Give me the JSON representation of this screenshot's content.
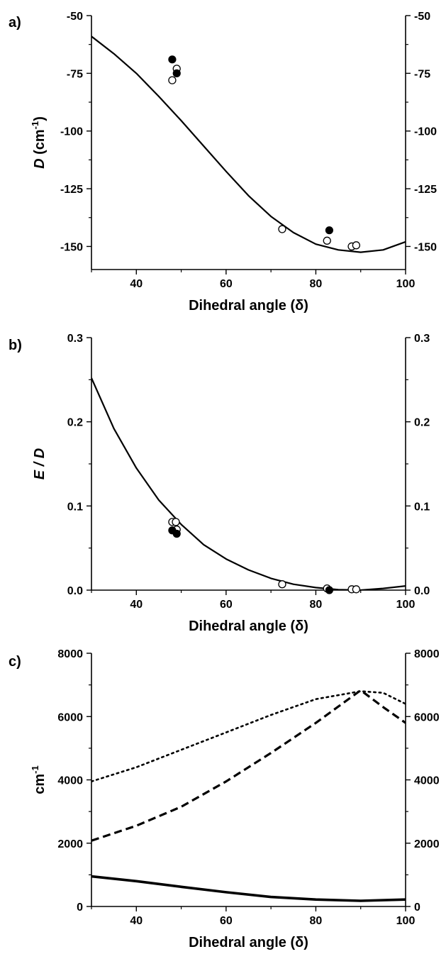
{
  "chart_data": [
    {
      "type": "line",
      "panel_label": "a)",
      "xlabel": "Dihedral angle (δ)",
      "ylabel": {
        "main": "D",
        "unit_prefix": " (cm",
        "unit_exp": "-1",
        "unit_suffix": ")"
      },
      "xlim": [
        30,
        100
      ],
      "ylim": [
        -160,
        -50
      ],
      "xticks": [
        40,
        60,
        80,
        100
      ],
      "yticks": [
        -150,
        -125,
        -100,
        -75,
        -50
      ],
      "grid": false,
      "series": [
        {
          "style": "solid",
          "x": [
            30,
            35,
            40,
            45,
            50,
            55,
            60,
            65,
            70,
            75,
            80,
            85,
            90,
            95,
            100
          ],
          "y": [
            -59,
            -66.5,
            -75,
            -85,
            -95.5,
            -106.5,
            -117.5,
            -128,
            -137,
            -144,
            -149,
            -151.5,
            -152.5,
            -151.5,
            -148
          ]
        }
      ],
      "markers": {
        "filled": [
          {
            "x": 48,
            "y": -69
          },
          {
            "x": 49,
            "y": -75
          },
          {
            "x": 83,
            "y": -143
          }
        ],
        "open": [
          {
            "x": 48,
            "y": -78
          },
          {
            "x": 49,
            "y": -73
          },
          {
            "x": 72.5,
            "y": -142.5
          },
          {
            "x": 82.5,
            "y": -147.5
          },
          {
            "x": 88,
            "y": -150
          },
          {
            "x": 89,
            "y": -149.5
          }
        ]
      }
    },
    {
      "type": "line",
      "panel_label": "b)",
      "xlabel": "Dihedral angle (δ)",
      "ylabel": {
        "main": "E / D"
      },
      "xlim": [
        30,
        100
      ],
      "ylim": [
        0,
        0.3
      ],
      "xticks": [
        40,
        60,
        80,
        100
      ],
      "yticks": [
        0.0,
        0.1,
        0.2,
        0.3
      ],
      "ytick_format": 1,
      "grid": false,
      "series": [
        {
          "style": "solid",
          "x": [
            30,
            35,
            40,
            45,
            50,
            55,
            60,
            65,
            70,
            75,
            80,
            85,
            90,
            95,
            100
          ],
          "y": [
            0.252,
            0.192,
            0.145,
            0.107,
            0.078,
            0.054,
            0.037,
            0.024,
            0.014,
            0.007,
            0.003,
            0.0005,
            0.0,
            0.002,
            0.005
          ]
        }
      ],
      "markers": {
        "filled": [
          {
            "x": 48,
            "y": 0.071
          },
          {
            "x": 49,
            "y": 0.067
          },
          {
            "x": 83,
            "y": 0.0
          }
        ],
        "open": [
          {
            "x": 48,
            "y": 0.081
          },
          {
            "x": 48.8,
            "y": 0.081
          },
          {
            "x": 49,
            "y": 0.072
          },
          {
            "x": 72.5,
            "y": 0.007
          },
          {
            "x": 82.5,
            "y": 0.002
          },
          {
            "x": 88,
            "y": 0.001
          },
          {
            "x": 89,
            "y": 0.001
          }
        ]
      }
    },
    {
      "type": "line",
      "panel_label": "c)",
      "xlabel": "Dihedral angle (δ)",
      "ylabel": {
        "main": "cm",
        "exp": "-1"
      },
      "xlim": [
        30,
        100
      ],
      "ylim": [
        0,
        8000
      ],
      "xticks": [
        40,
        60,
        80,
        100
      ],
      "yticks": [
        0,
        2000,
        4000,
        6000,
        8000
      ],
      "grid": false,
      "series": [
        {
          "style": "dotted",
          "x": [
            30,
            40,
            50,
            60,
            70,
            80,
            90,
            95,
            100
          ],
          "y": [
            3950,
            4400,
            4950,
            5500,
            6050,
            6550,
            6800,
            6750,
            6400
          ]
        },
        {
          "style": "dashed",
          "x": [
            30,
            40,
            50,
            60,
            70,
            80,
            90,
            95,
            100
          ],
          "y": [
            2080,
            2550,
            3150,
            3950,
            4850,
            5800,
            6830,
            6300,
            5800
          ]
        },
        {
          "style": "thick",
          "x": [
            30,
            40,
            50,
            60,
            70,
            80,
            90,
            100
          ],
          "y": [
            950,
            800,
            620,
            450,
            300,
            220,
            180,
            220
          ]
        }
      ]
    }
  ]
}
